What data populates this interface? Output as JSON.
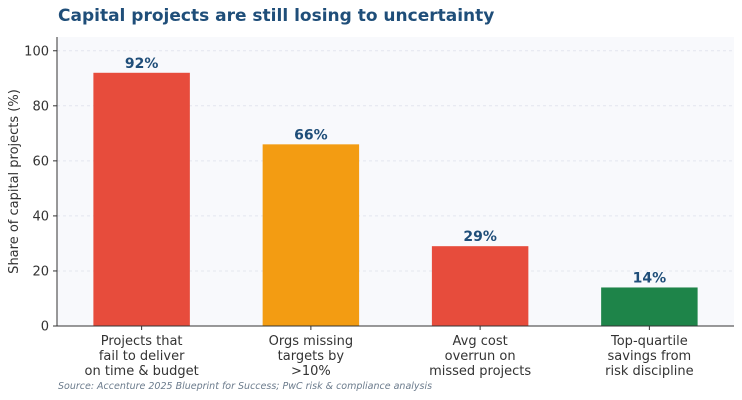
{
  "colors": {
    "title": "#1f4e79",
    "value_label": "#1f4e79",
    "plot_bg": "#f8f9fc",
    "axis": "#333333",
    "tick_text": "#333333",
    "category_text": "#333333",
    "source_text": "#6b7b8c",
    "grid": "#e3e6ee"
  },
  "chart_data": {
    "type": "bar",
    "title": "Capital projects are still losing to uncertainty",
    "xlabel": "",
    "ylabel": "Share of capital projects (%)",
    "ylim": [
      0,
      105
    ],
    "yticks": [
      0,
      20,
      40,
      60,
      80,
      100
    ],
    "grid": "horizontal-dashed",
    "legend": "none",
    "categories": [
      [
        "Projects that",
        "fail to deliver",
        "on time & budget"
      ],
      [
        "Orgs missing",
        "targets by",
        ">10%"
      ],
      [
        "Avg cost",
        "overrun on",
        "missed projects"
      ],
      [
        "Top-quartile",
        "savings from",
        "risk discipline"
      ]
    ],
    "values": [
      92,
      66,
      29,
      14
    ],
    "value_labels": [
      "92%",
      "66%",
      "29%",
      "14%"
    ],
    "bar_colors": [
      "#e74c3c",
      "#f39c12",
      "#e74c3c",
      "#1e8449"
    ],
    "source": "Source: Accenture 2025 Blueprint for Success; PwC risk & compliance analysis"
  }
}
